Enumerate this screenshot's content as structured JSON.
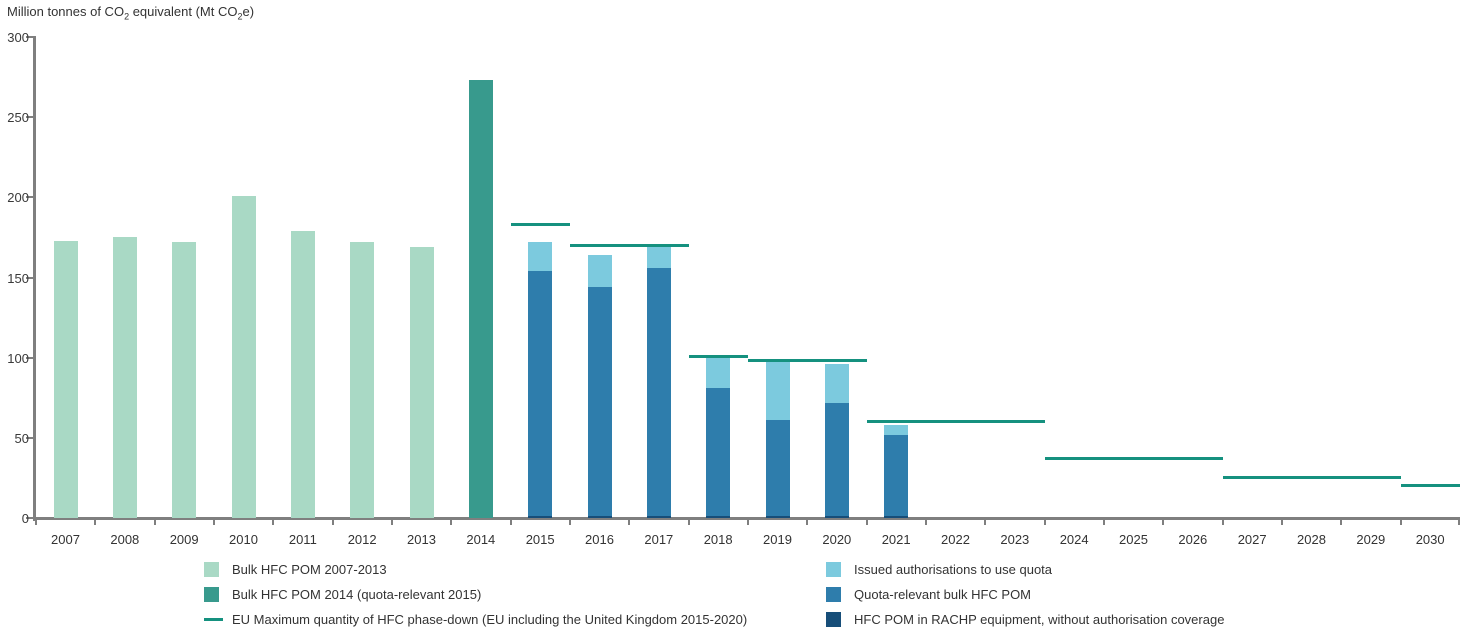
{
  "title": {
    "p1": "Million tonnes of CO",
    "sub1": "2",
    "p2": " equivalent (Mt CO",
    "sub2": "2",
    "p3": "e)"
  },
  "colors": {
    "light_green": "#a9d9c5",
    "teal": "#389a8d",
    "line_teal": "#15917f",
    "light_blue": "#7ccade",
    "medium_blue": "#2e7dac",
    "dark_navy": "#174e79",
    "axis_gray": "#7f7f7f",
    "text": "#333333"
  },
  "chart_data": {
    "type": "bar",
    "title": "Million tonnes of CO2 equivalent (Mt CO2e)",
    "ylabel": "Mt CO2e",
    "ylim": [
      0,
      300
    ],
    "y_ticks": [
      0,
      50,
      100,
      150,
      200,
      250,
      300
    ],
    "years": [
      2007,
      2008,
      2009,
      2010,
      2011,
      2012,
      2013,
      2014,
      2015,
      2016,
      2017,
      2018,
      2019,
      2020,
      2021,
      2022,
      2023,
      2024,
      2025,
      2026,
      2027,
      2028,
      2029,
      2030
    ],
    "grid": "off",
    "legend_position": "bottom",
    "series": [
      {
        "key": "bulk",
        "name": "Bulk HFC POM 2007-2013",
        "color_key": "light_green",
        "points": {
          "2007": 173,
          "2008": 175,
          "2009": 172,
          "2010": 201,
          "2011": 179,
          "2012": 172,
          "2013": 169
        }
      },
      {
        "key": "bulk2014",
        "name": "Bulk HFC POM 2014 (quota-relevant 2015)",
        "color_key": "teal",
        "points": {
          "2014": 273
        }
      },
      {
        "key": "rachp",
        "name": "HFC POM in RACHP equipment, without authorisation coverage",
        "color_key": "dark_navy",
        "points": {
          "2015": 1,
          "2016": 1,
          "2017": 1,
          "2018": 1,
          "2019": 1,
          "2020": 1,
          "2021": 1
        }
      },
      {
        "key": "quota",
        "name": "Quota-relevant bulk HFC POM",
        "color_key": "medium_blue",
        "points": {
          "2015": 153,
          "2016": 143,
          "2017": 155,
          "2018": 80,
          "2019": 60,
          "2020": 71,
          "2021": 51
        }
      },
      {
        "key": "auth",
        "name": "Issued authorisations to use quota",
        "color_key": "light_blue",
        "points": {
          "2015": 18,
          "2016": 20,
          "2017": 13,
          "2018": 20,
          "2019": 37,
          "2020": 24,
          "2021": 6
        }
      }
    ],
    "eu_max_lines": [
      {
        "label": "2015",
        "from": 2015,
        "to": 2015,
        "value": 183
      },
      {
        "label": "2016-2017",
        "from": 2016,
        "to": 2017,
        "value": 170
      },
      {
        "label": "2018",
        "from": 2018,
        "to": 2018,
        "value": 101
      },
      {
        "label": "2019-2020",
        "from": 2019,
        "to": 2020,
        "value": 98
      },
      {
        "label": "2021-2023",
        "from": 2021,
        "to": 2023,
        "value": 60
      },
      {
        "label": "2024-2026",
        "from": 2024,
        "to": 2026,
        "value": 37
      },
      {
        "label": "2027-2029",
        "from": 2027,
        "to": 2029,
        "value": 25
      },
      {
        "label": "2030",
        "from": 2030,
        "to": 2030,
        "value": 20
      }
    ]
  },
  "legend": {
    "left": [
      {
        "label": "Bulk HFC POM 2007-2013",
        "swatch": "square",
        "color_key": "light_green"
      },
      {
        "label": "Bulk HFC POM 2014 (quota-relevant 2015)",
        "swatch": "square",
        "color_key": "teal"
      },
      {
        "label": "EU Maximum quantity of HFC phase-down (EU including the United Kingdom 2015-2020)",
        "swatch": "line",
        "color_key": "line_teal"
      }
    ],
    "right": [
      {
        "label": "Issued authorisations to use quota",
        "swatch": "square",
        "color_key": "light_blue"
      },
      {
        "label": "Quota-relevant bulk HFC POM",
        "swatch": "square",
        "color_key": "medium_blue"
      },
      {
        "label": "HFC POM in RACHP equipment, without authorisation coverage",
        "swatch": "square",
        "color_key": "dark_navy"
      }
    ]
  }
}
